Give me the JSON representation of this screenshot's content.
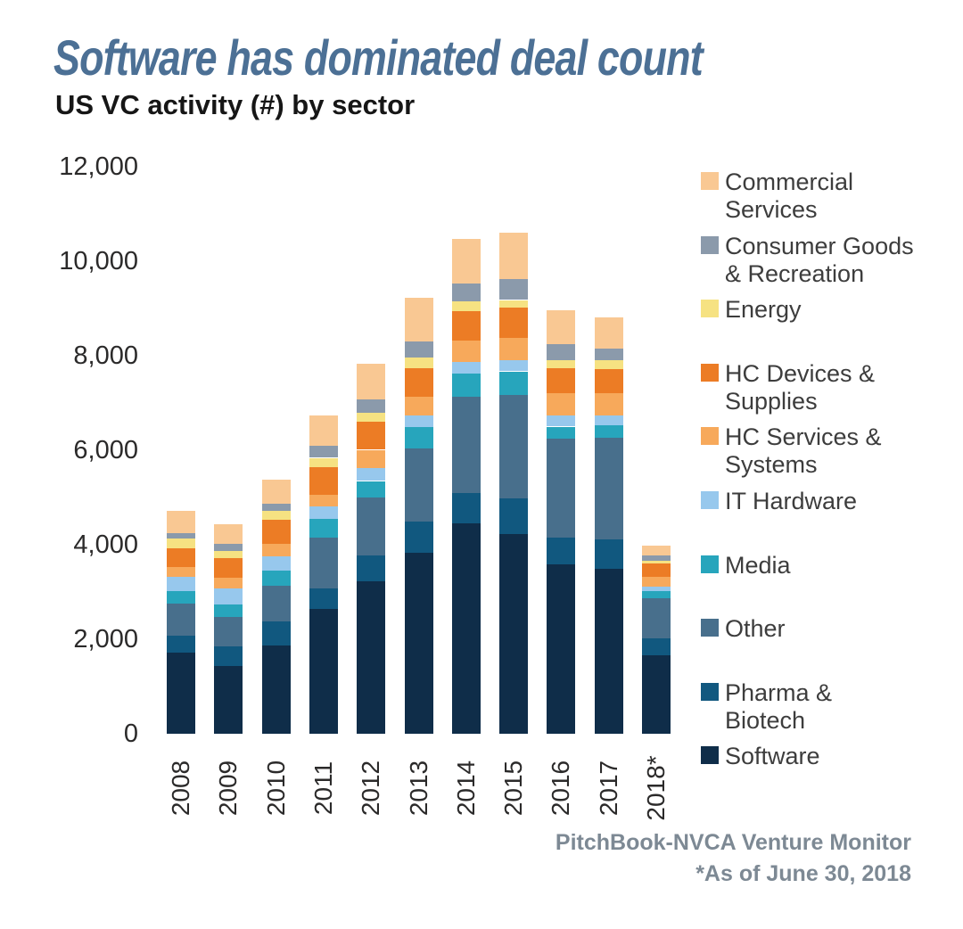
{
  "header": {
    "title": "Software has dominated deal count",
    "subtitle": "US VC activity (#) by sector"
  },
  "footer": {
    "source": "PitchBook-NVCA Venture Monitor",
    "note": "*As of June 30, 2018"
  },
  "colors": {
    "title_text": "#4C7095",
    "subtitle_text": "#161616",
    "axis_text": "#2B2A2A",
    "legend_text": "#3D3D3D",
    "footer_text": "#7D8994"
  },
  "legend": {
    "position": "right",
    "items": [
      {
        "label": "Commercial Services",
        "lines": [
          "Commercial",
          "Services"
        ]
      },
      {
        "label": "Consumer Goods & Recreation",
        "lines": [
          "Consumer Goods",
          "& Recreation"
        ]
      },
      {
        "label": "Energy",
        "lines": [
          "Energy"
        ]
      },
      {
        "label": "HC Devices & Supplies",
        "lines": [
          "HC Devices &",
          "Supplies"
        ]
      },
      {
        "label": "HC Services & Systems",
        "lines": [
          "HC Services &",
          "Systems"
        ]
      },
      {
        "label": "IT Hardware",
        "lines": [
          "IT Hardware"
        ]
      },
      {
        "label": "Media",
        "lines": [
          "Media"
        ]
      },
      {
        "label": "Other",
        "lines": [
          "Other"
        ]
      },
      {
        "label": "Pharma & Biotech",
        "lines": [
          "Pharma &",
          "Biotech"
        ]
      },
      {
        "label": "Software",
        "lines": [
          "Software"
        ]
      }
    ]
  },
  "chart_data": {
    "type": "bar",
    "stacked": true,
    "title": "Software has dominated deal count",
    "subtitle": "US VC activity (#) by sector",
    "xlabel": "",
    "ylabel": "",
    "ylim": [
      0,
      12000
    ],
    "y_ticks": [
      0,
      2000,
      4000,
      6000,
      8000,
      10000,
      12000
    ],
    "grid": false,
    "legend_position": "right",
    "categories": [
      "2008",
      "2009",
      "2010",
      "2011",
      "2012",
      "2013",
      "2014",
      "2015",
      "2016",
      "2017",
      "2018*"
    ],
    "stack_order_note": "series listed bottom of stack to top of stack",
    "series": [
      {
        "name": "Software",
        "color": "#0F2D49",
        "values": [
          1720,
          1430,
          1870,
          2640,
          3230,
          3830,
          4450,
          4230,
          3590,
          3490,
          1660
        ]
      },
      {
        "name": "Pharma & Biotech",
        "color": "#11587F",
        "values": [
          360,
          420,
          510,
          430,
          550,
          660,
          640,
          760,
          570,
          620,
          360
        ]
      },
      {
        "name": "Other",
        "color": "#486F8C",
        "values": [
          680,
          620,
          760,
          1080,
          1230,
          1550,
          2040,
          2190,
          2090,
          2150,
          850
        ]
      },
      {
        "name": "Media",
        "color": "#27A5BC",
        "values": [
          260,
          260,
          320,
          400,
          340,
          450,
          490,
          490,
          250,
          260,
          150
        ]
      },
      {
        "name": "IT Hardware",
        "color": "#97C8ED",
        "values": [
          300,
          340,
          300,
          260,
          280,
          250,
          250,
          230,
          230,
          210,
          90
        ]
      },
      {
        "name": "HC Services & Systems",
        "color": "#F7A95B",
        "values": [
          210,
          230,
          260,
          250,
          380,
          400,
          450,
          470,
          470,
          470,
          210
        ]
      },
      {
        "name": "HC Devices & Supplies",
        "color": "#EC7C25",
        "values": [
          400,
          420,
          510,
          590,
          600,
          590,
          620,
          660,
          530,
          510,
          280
        ]
      },
      {
        "name": "Energy",
        "color": "#F6E282",
        "values": [
          210,
          150,
          190,
          190,
          190,
          230,
          210,
          150,
          170,
          190,
          60
        ]
      },
      {
        "name": "Consumer Goods & Recreation",
        "color": "#8B9AAB",
        "values": [
          110,
          150,
          150,
          250,
          280,
          340,
          380,
          450,
          340,
          260,
          110
        ]
      },
      {
        "name": "Commercial Services",
        "color": "#F9C893",
        "values": [
          470,
          420,
          510,
          640,
          760,
          920,
          940,
          980,
          720,
          660,
          210
        ]
      }
    ],
    "totals": [
      4720,
      4440,
      5380,
      6730,
      7840,
      9220,
      10470,
      10610,
      8960,
      8820,
      3980
    ]
  }
}
